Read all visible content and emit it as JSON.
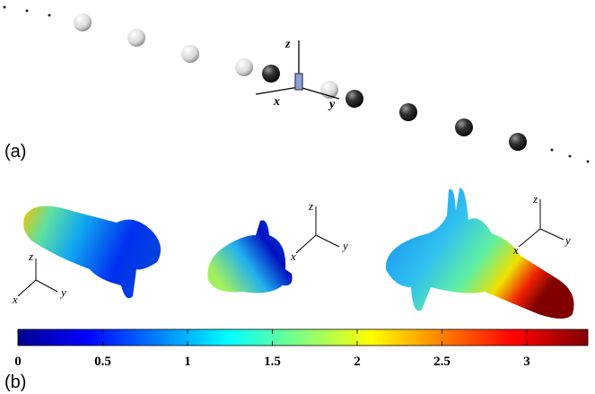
{
  "panel_a": {
    "label": "(a)",
    "axes": {
      "x": "x",
      "y": "y",
      "z": "z"
    }
  },
  "panel_b": {
    "label": "(b)",
    "patterns": [
      {
        "axes": {
          "x": "x",
          "y": "y",
          "z": "z"
        }
      },
      {
        "axes": {
          "x": "x",
          "y": "y",
          "z": "z"
        }
      },
      {
        "axes": {
          "x": "x",
          "y": "y",
          "z": "z"
        }
      }
    ],
    "colorbar": {
      "range": [
        0,
        3.36
      ],
      "ticks": [
        0,
        0.5,
        1,
        1.5,
        2,
        2.5,
        3
      ]
    }
  }
}
